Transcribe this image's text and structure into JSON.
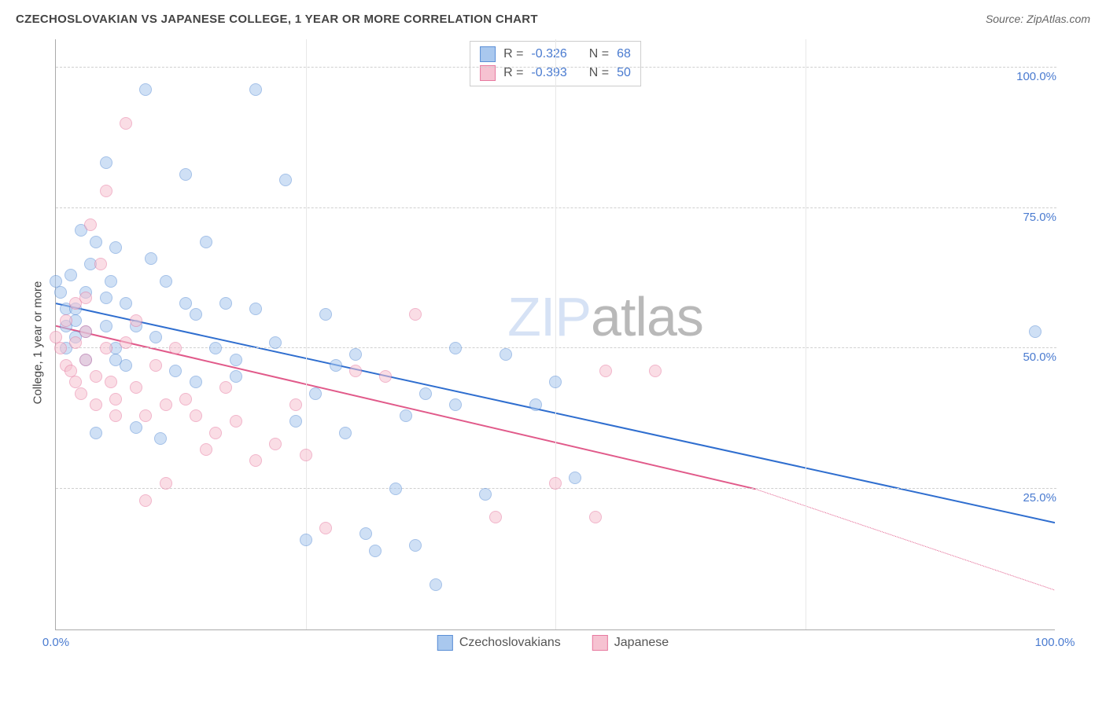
{
  "title": "CZECHOSLOVAKIAN VS JAPANESE COLLEGE, 1 YEAR OR MORE CORRELATION CHART",
  "source": "Source: ZipAtlas.com",
  "ylabel": "College, 1 year or more",
  "watermark_a": "ZIP",
  "watermark_b": "atlas",
  "chart": {
    "type": "scatter_with_trend",
    "xlim": [
      0,
      100
    ],
    "ylim": [
      0,
      105
    ],
    "x_ticks": [
      0,
      25,
      50,
      75,
      100
    ],
    "x_tick_labels": [
      "0.0%",
      "",
      "",
      "",
      "100.0%"
    ],
    "y_ticks": [
      25,
      50,
      75,
      100
    ],
    "y_tick_labels": [
      "25.0%",
      "50.0%",
      "75.0%",
      "100.0%"
    ],
    "grid_color": "#d0d0d0",
    "axis_color": "#aaaaaa",
    "background_color": "#ffffff",
    "tick_label_color": "#4a7bd0",
    "tick_fontsize": 15,
    "title_fontsize": 15,
    "marker_radius": 8,
    "marker_opacity": 0.55,
    "trend_line_width": 2
  },
  "series": [
    {
      "name": "Czechoslovakians",
      "color_fill": "#a9c8ee",
      "color_stroke": "#5b8fd6",
      "trend_color": "#2f6ecf",
      "stats": {
        "r_label": "R =",
        "r": "-0.326",
        "n_label": "N =",
        "n": "68"
      },
      "trend": {
        "x1": 0,
        "y1": 58,
        "x2": 100,
        "y2": 19,
        "dash_from_x": 100
      },
      "points": [
        [
          0,
          62
        ],
        [
          0.5,
          60
        ],
        [
          1,
          57
        ],
        [
          1,
          54
        ],
        [
          1,
          50
        ],
        [
          1.5,
          63
        ],
        [
          2,
          55
        ],
        [
          2,
          52
        ],
        [
          2,
          57
        ],
        [
          2.5,
          71
        ],
        [
          3,
          60
        ],
        [
          3,
          48
        ],
        [
          3,
          53
        ],
        [
          3.5,
          65
        ],
        [
          4,
          69
        ],
        [
          4,
          35
        ],
        [
          5,
          83
        ],
        [
          5,
          59
        ],
        [
          5,
          54
        ],
        [
          5.5,
          62
        ],
        [
          6,
          50
        ],
        [
          6,
          68
        ],
        [
          7,
          58
        ],
        [
          7,
          47
        ],
        [
          8,
          54
        ],
        [
          8,
          36
        ],
        [
          9,
          96
        ],
        [
          9.5,
          66
        ],
        [
          10,
          52
        ],
        [
          10.5,
          34
        ],
        [
          11,
          62
        ],
        [
          12,
          46
        ],
        [
          13,
          58
        ],
        [
          13,
          81
        ],
        [
          14,
          44
        ],
        [
          14,
          56
        ],
        [
          15,
          69
        ],
        [
          16,
          50
        ],
        [
          17,
          58
        ],
        [
          18,
          45
        ],
        [
          18,
          48
        ],
        [
          20,
          96
        ],
        [
          20,
          57
        ],
        [
          22,
          51
        ],
        [
          23,
          80
        ],
        [
          24,
          37
        ],
        [
          25,
          16
        ],
        [
          26,
          42
        ],
        [
          27,
          56
        ],
        [
          28,
          47
        ],
        [
          29,
          35
        ],
        [
          30,
          49
        ],
        [
          31,
          17
        ],
        [
          32,
          14
        ],
        [
          34,
          25
        ],
        [
          35,
          38
        ],
        [
          36,
          15
        ],
        [
          37,
          42
        ],
        [
          38,
          8
        ],
        [
          40,
          40
        ],
        [
          40,
          50
        ],
        [
          43,
          24
        ],
        [
          45,
          49
        ],
        [
          48,
          40
        ],
        [
          50,
          44
        ],
        [
          52,
          27
        ],
        [
          98,
          53
        ],
        [
          6,
          48
        ]
      ]
    },
    {
      "name": "Japanese",
      "color_fill": "#f6c2d1",
      "color_stroke": "#e77aa0",
      "trend_color": "#e15a8a",
      "stats": {
        "r_label": "R =",
        "r": "-0.393",
        "n_label": "N =",
        "n": "50"
      },
      "trend": {
        "x1": 0,
        "y1": 54,
        "x2": 70,
        "y2": 25,
        "dash_from_x": 70,
        "dash_x2": 100,
        "dash_y2": 7
      },
      "points": [
        [
          0,
          52
        ],
        [
          0.5,
          50
        ],
        [
          1,
          47
        ],
        [
          1,
          55
        ],
        [
          1.5,
          46
        ],
        [
          2,
          51
        ],
        [
          2,
          58
        ],
        [
          2,
          44
        ],
        [
          2.5,
          42
        ],
        [
          3,
          48
        ],
        [
          3,
          53
        ],
        [
          3,
          59
        ],
        [
          3.5,
          72
        ],
        [
          4,
          45
        ],
        [
          4,
          40
        ],
        [
          4.5,
          65
        ],
        [
          5,
          50
        ],
        [
          5,
          78
        ],
        [
          5.5,
          44
        ],
        [
          6,
          41
        ],
        [
          6,
          38
        ],
        [
          7,
          51
        ],
        [
          7,
          90
        ],
        [
          8,
          55
        ],
        [
          8,
          43
        ],
        [
          9,
          38
        ],
        [
          9,
          23
        ],
        [
          10,
          47
        ],
        [
          11,
          40
        ],
        [
          11,
          26
        ],
        [
          12,
          50
        ],
        [
          13,
          41
        ],
        [
          14,
          38
        ],
        [
          15,
          32
        ],
        [
          16,
          35
        ],
        [
          17,
          43
        ],
        [
          18,
          37
        ],
        [
          20,
          30
        ],
        [
          22,
          33
        ],
        [
          24,
          40
        ],
        [
          25,
          31
        ],
        [
          27,
          18
        ],
        [
          30,
          46
        ],
        [
          33,
          45
        ],
        [
          36,
          56
        ],
        [
          44,
          20
        ],
        [
          50,
          26
        ],
        [
          54,
          20
        ],
        [
          55,
          46
        ],
        [
          60,
          46
        ]
      ]
    }
  ],
  "legend": {
    "items": [
      "Czechoslovakians",
      "Japanese"
    ]
  }
}
